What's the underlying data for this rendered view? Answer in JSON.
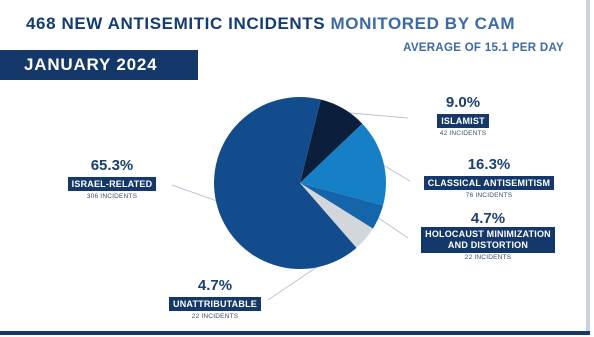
{
  "header": {
    "title_highlight": "468 NEW ANTISEMITIC INCIDENTS",
    "title_rest": " MONITORED BY CAM",
    "subtitle": "AVERAGE OF 15.1 PER DAY",
    "banner": "JANUARY 2024"
  },
  "colors": {
    "navy": "#15386b",
    "israel": "#134c8c",
    "islamist": "#0b1e3c",
    "classical": "#1580c6",
    "holocaust": "#1565ab",
    "unattributable": "#d3d6da"
  },
  "chart_data": {
    "type": "pie",
    "title": "468 NEW ANTISEMITIC INCIDENTS MONITORED BY CAM",
    "subtitle": "AVERAGE OF 15.1 PER DAY",
    "slices": [
      {
        "key": "islamist",
        "percent": 9.0,
        "percent_label": "9.0%",
        "label": "ISLAMIST",
        "incidents": 42,
        "count_label": "42 INCIDENTS",
        "color": "#0b1e3c"
      },
      {
        "key": "classical",
        "percent": 16.3,
        "percent_label": "16.3%",
        "label": "CLASSICAL ANTISEMITISM",
        "incidents": 76,
        "count_label": "76 INCIDENTS",
        "color": "#1580c6"
      },
      {
        "key": "holocaust",
        "percent": 4.7,
        "percent_label": "4.7%",
        "label": "HOLOCAUST MINIMIZATION AND DISTORTION",
        "label_line1": "HOLOCAUST MINIMIZATION",
        "label_line2": "AND DISTORTION",
        "incidents": 22,
        "count_label": "22 INCIDENTS",
        "color": "#1565ab"
      },
      {
        "key": "unattributable",
        "percent": 4.7,
        "percent_label": "4.7%",
        "label": "UNATTRIBUTABLE",
        "incidents": 22,
        "count_label": "22 INCIDENTS",
        "color": "#d3d6da"
      },
      {
        "key": "israel",
        "percent": 65.3,
        "percent_label": "65.3%",
        "label": "ISRAEL-RELATED",
        "incidents": 306,
        "count_label": "306 INCIDENTS",
        "color": "#134c8c"
      }
    ]
  }
}
